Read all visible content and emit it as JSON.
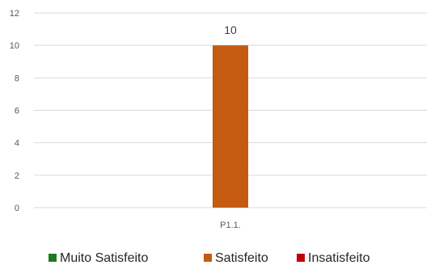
{
  "chart_data": {
    "type": "bar",
    "categories": [
      "P1.1."
    ],
    "series": [
      {
        "name": "Muito Satisfeito",
        "values": [
          0
        ],
        "color": "#1e7b1e"
      },
      {
        "name": "Satisfeito",
        "values": [
          10
        ],
        "color": "#c55a11"
      },
      {
        "name": "Insatisfeito",
        "values": [
          0
        ],
        "color": "#c00000"
      }
    ],
    "yticks": [
      0,
      2,
      4,
      6,
      8,
      10,
      12
    ],
    "ylim": [
      0,
      12
    ],
    "data_labels": [
      "10"
    ],
    "grid": true,
    "legend_position": "bottom",
    "title": "",
    "xlabel": "",
    "ylabel": ""
  }
}
